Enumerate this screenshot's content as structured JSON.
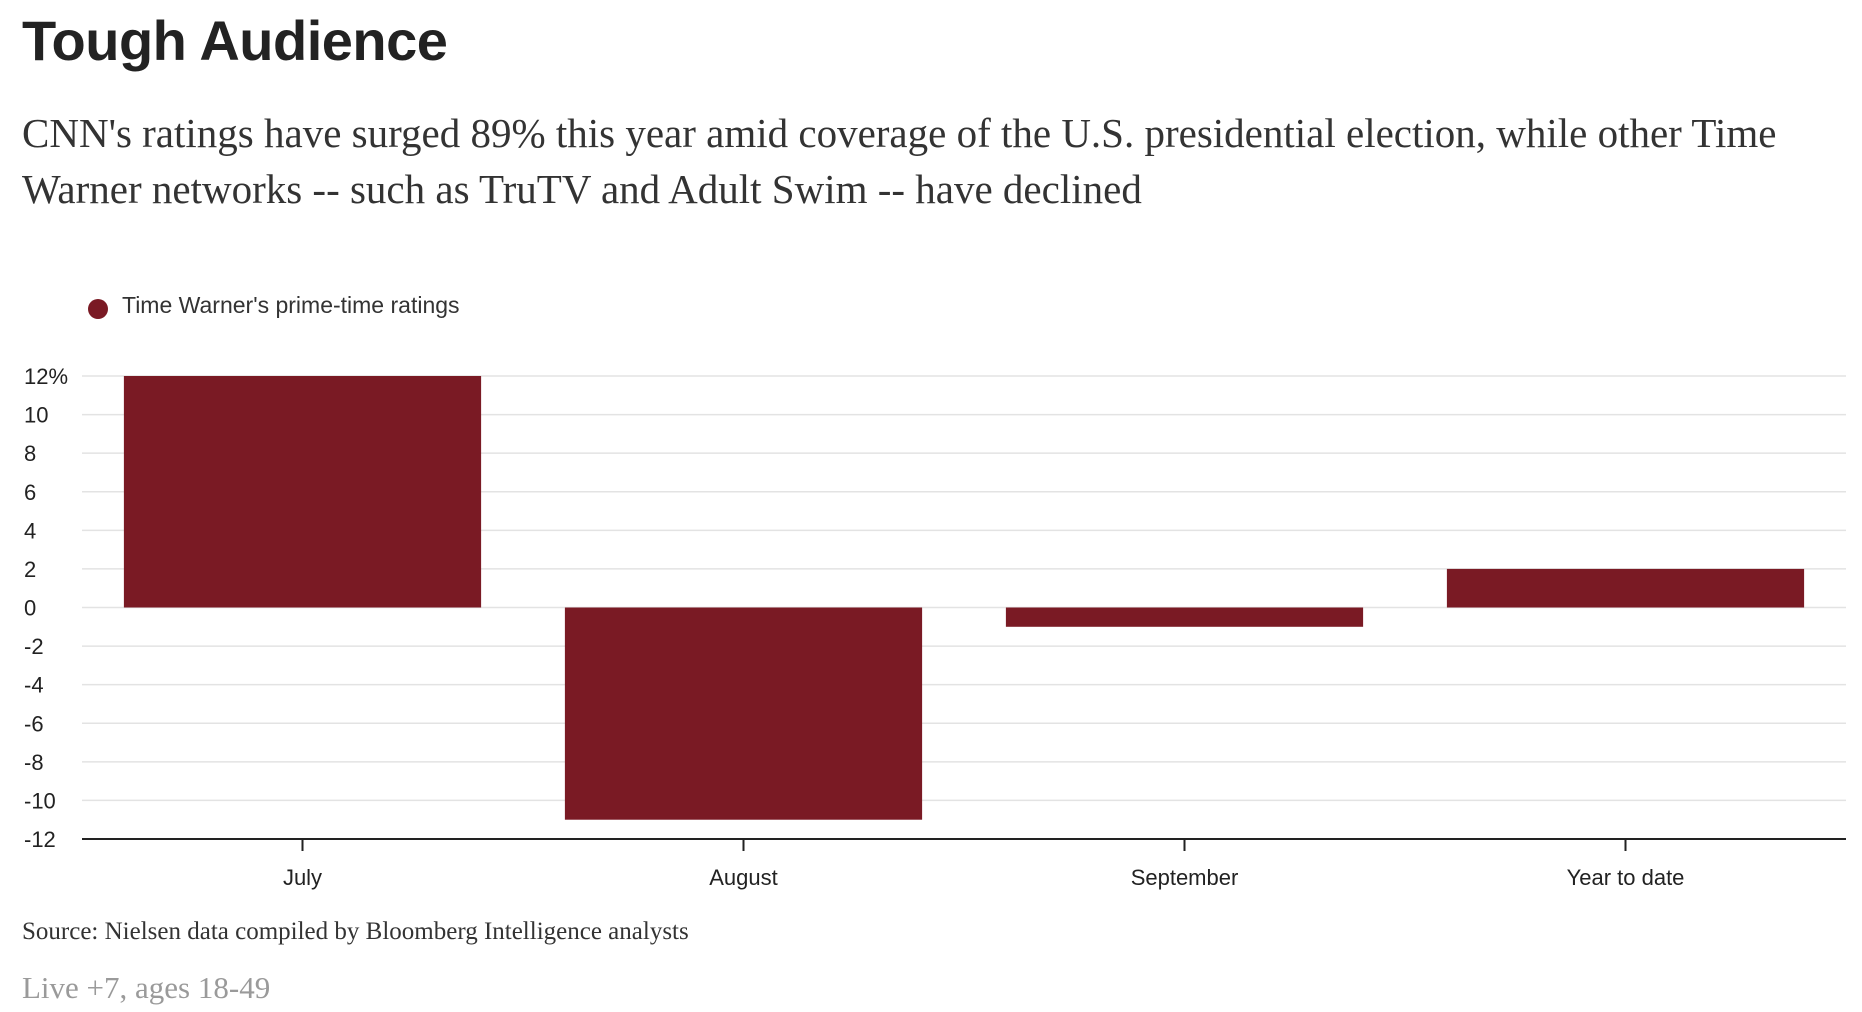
{
  "colors": {
    "bar": "#7a1a24",
    "grid": "#e3e3e3",
    "axis": "#222222"
  },
  "chart_data": {
    "type": "bar",
    "title": "Tough Audience",
    "subtitle": "CNN's ratings have surged 89% this year amid coverage of the U.S. presidential election, while other Time Warner networks -- such as TruTV and Adult Swim -- have declined",
    "categories": [
      "July",
      "August",
      "September",
      "Year to date"
    ],
    "series": [
      {
        "name": "Time Warner's prime-time ratings",
        "values": [
          12,
          -11,
          -1,
          2
        ]
      }
    ],
    "yticks": [
      12,
      10,
      8,
      6,
      4,
      2,
      0,
      -2,
      -4,
      -6,
      -8,
      -10,
      -12
    ],
    "ytick_labels": [
      "12%",
      "10",
      "8",
      "6",
      "4",
      "2",
      "0",
      "-2",
      "-4",
      "-6",
      "-8",
      "-10",
      "-12"
    ],
    "ylim": [
      -12,
      12
    ],
    "grid": true,
    "legend": "top-left",
    "source": "Source: Nielsen data compiled by Bloomberg Intelligence analysts",
    "note": "Live +7, ages 18-49"
  }
}
